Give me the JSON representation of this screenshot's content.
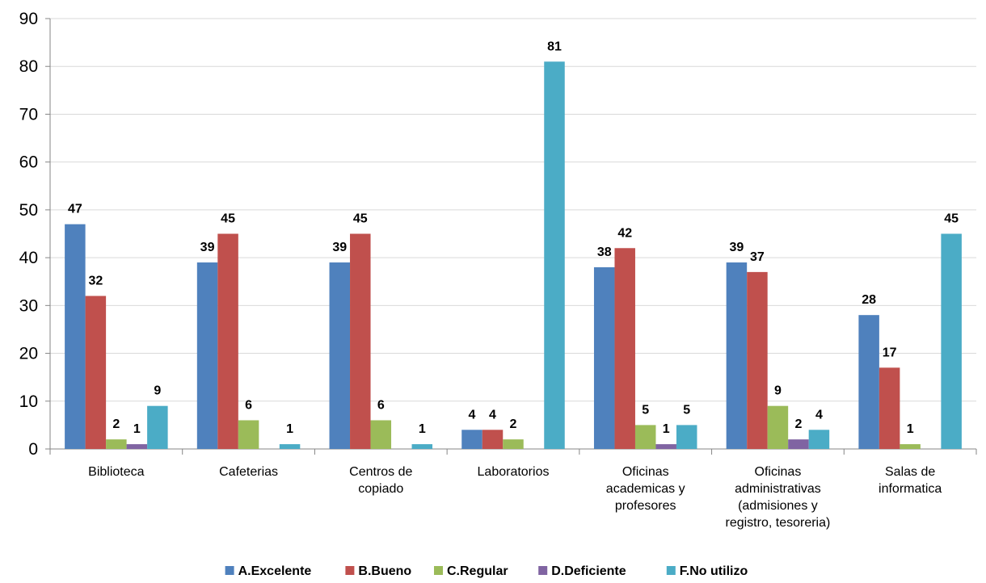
{
  "chart_data": {
    "type": "bar",
    "title": "",
    "xlabel": "",
    "ylabel": "",
    "ylim": [
      0,
      90
    ],
    "yticks": [
      0,
      10,
      20,
      30,
      40,
      50,
      60,
      70,
      80,
      90
    ],
    "grid": true,
    "legend_position": "bottom",
    "categories": [
      [
        "Biblioteca"
      ],
      [
        "Cafeterias"
      ],
      [
        "Centros de",
        "copiado"
      ],
      [
        "Laboratorios"
      ],
      [
        "Oficinas",
        "academicas y",
        "profesores"
      ],
      [
        "Oficinas",
        "administrativas",
        "(admisiones y",
        "registro, tesoreria)"
      ],
      [
        "Salas de",
        "informatica"
      ]
    ],
    "series": [
      {
        "name": "A.Excelente",
        "color": "#4f81bd",
        "values": [
          47,
          39,
          39,
          4,
          38,
          39,
          28
        ]
      },
      {
        "name": "B.Bueno",
        "color": "#c0504d",
        "values": [
          32,
          45,
          45,
          4,
          42,
          37,
          17
        ]
      },
      {
        "name": "C.Regular",
        "color": "#9bbb59",
        "values": [
          2,
          6,
          6,
          2,
          5,
          9,
          1
        ]
      },
      {
        "name": "D.Deficiente",
        "color": "#8064a2",
        "values": [
          1,
          null,
          null,
          null,
          1,
          2,
          null
        ]
      },
      {
        "name": "F.No utilizo",
        "color": "#4bacc6",
        "values": [
          9,
          1,
          1,
          81,
          5,
          4,
          45
        ]
      }
    ]
  }
}
